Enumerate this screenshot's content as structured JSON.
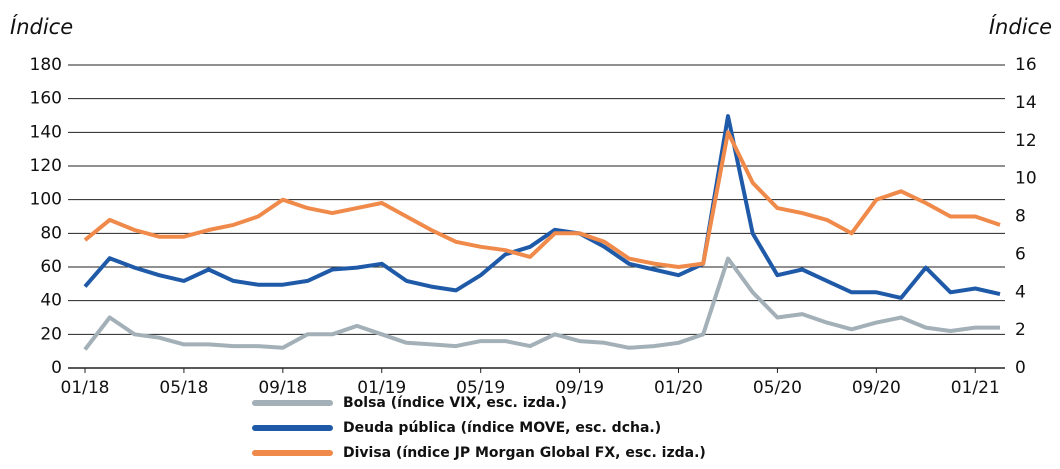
{
  "chart_data": {
    "type": "line",
    "ylabel": "Índice",
    "y2label": "Índice",
    "categories": [
      "01/18",
      null,
      null,
      null,
      "05/18",
      null,
      null,
      null,
      "09/18",
      null,
      null,
      null,
      "01/19",
      null,
      null,
      null,
      "05/19",
      null,
      null,
      null,
      "09/19",
      null,
      null,
      null,
      "01/20",
      null,
      null,
      null,
      "05/20",
      null,
      null,
      null,
      "09/20",
      null,
      null,
      null,
      "01/21",
      null
    ],
    "series": [
      {
        "name": "Bolsa (índice VIX, esc. izda.)",
        "color": "#a3b0b8",
        "values": [
          11,
          30,
          20,
          18,
          14,
          14,
          13,
          13,
          12,
          20,
          20,
          25,
          20,
          15,
          14,
          13,
          16,
          16,
          13,
          20,
          16,
          15,
          12,
          13,
          15,
          20,
          65,
          45,
          30,
          32,
          27,
          23,
          27,
          30,
          24,
          22,
          24,
          24
        ]
      },
      {
        "name": "Deuda pública (índice MOVE, esc. dcha.)",
        "color": "#1f5aa8",
        "axis": "y2",
        "values": [
          4.3,
          5.8,
          5.3,
          4.9,
          4.6,
          5.2,
          4.6,
          4.4,
          4.4,
          4.6,
          5.2,
          5.3,
          5.5,
          4.6,
          4.3,
          4.1,
          4.9,
          6.0,
          6.4,
          7.3,
          7.1,
          6.4,
          5.5,
          5.2,
          4.9,
          5.5,
          13.3,
          7.1,
          4.9,
          5.2,
          4.6,
          4.0,
          4.0,
          3.7,
          5.3,
          4.0,
          4.2,
          3.9
        ]
      },
      {
        "name": "Divisa (índice JP Morgan Global FX, esc. izda.)",
        "color": "#f08a4b",
        "values": [
          76,
          88,
          82,
          78,
          78,
          82,
          85,
          90,
          100,
          95,
          92,
          95,
          98,
          90,
          82,
          75,
          72,
          70,
          66,
          80,
          80,
          75,
          65,
          62,
          60,
          62,
          140,
          110,
          95,
          92,
          88,
          80,
          100,
          105,
          98,
          90,
          90,
          85
        ]
      }
    ],
    "ylim": [
      0,
      180
    ],
    "yticks": [
      0,
      20,
      40,
      60,
      80,
      100,
      120,
      140,
      160,
      180
    ],
    "y2lim": [
      0,
      16
    ],
    "y2ticks": [
      0,
      2,
      4,
      6,
      8,
      10,
      12,
      14,
      16
    ],
    "grid": true
  }
}
